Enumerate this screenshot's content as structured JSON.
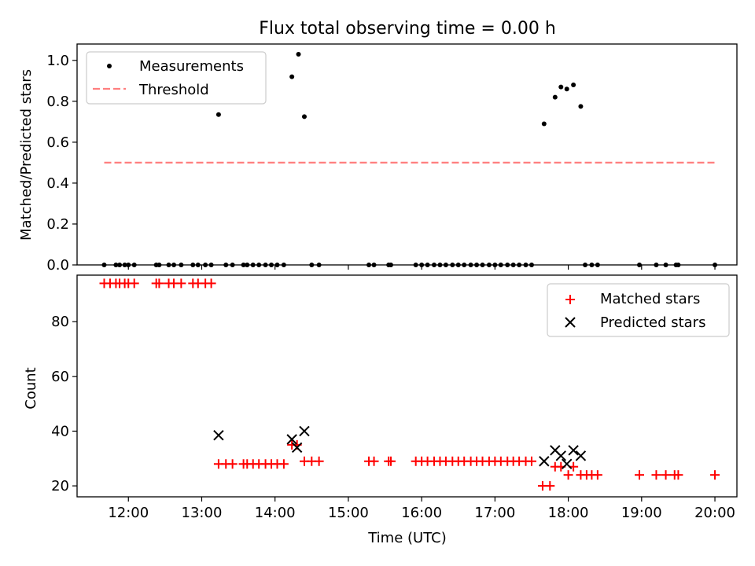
{
  "chart_data": {
    "type": "scatter",
    "title": "Flux total observing time = 0.00 h",
    "x_tick_labels": [
      "12:00",
      "13:00",
      "14:00",
      "15:00",
      "16:00",
      "17:00",
      "18:00",
      "19:00",
      "20:00"
    ],
    "x_ticks_hours": [
      12,
      13,
      14,
      15,
      16,
      17,
      18,
      19,
      20
    ],
    "xlabel": "Time (UTC)",
    "xlim_hours": [
      11.3,
      20.3
    ],
    "panels": [
      {
        "ylabel": "Matched/Predicted stars",
        "ylim": [
          0,
          1.08
        ],
        "y_ticks": [
          0.0,
          0.2,
          0.4,
          0.6,
          0.8,
          1.0
        ],
        "y_tick_labels": [
          "0.0",
          "0.2",
          "0.4",
          "0.6",
          "0.8",
          "1.0"
        ],
        "legend": {
          "placement": "upper-left",
          "entries": [
            "Measurements",
            "Threshold"
          ]
        },
        "series": [
          {
            "name": "Measurements",
            "marker": "dot",
            "color": "#000000",
            "points": [
              [
                11.67,
                0
              ],
              [
                11.83,
                0
              ],
              [
                11.88,
                0
              ],
              [
                11.95,
                0
              ],
              [
                12.0,
                0
              ],
              [
                12.08,
                0
              ],
              [
                12.38,
                0
              ],
              [
                12.42,
                0
              ],
              [
                12.55,
                0
              ],
              [
                12.62,
                0
              ],
              [
                12.72,
                0
              ],
              [
                12.88,
                0
              ],
              [
                12.95,
                0
              ],
              [
                13.05,
                0
              ],
              [
                13.13,
                0
              ],
              [
                13.23,
                0.735
              ],
              [
                13.33,
                0
              ],
              [
                13.42,
                0
              ],
              [
                13.57,
                0
              ],
              [
                13.62,
                0
              ],
              [
                13.7,
                0
              ],
              [
                13.78,
                0
              ],
              [
                13.87,
                0
              ],
              [
                13.95,
                0
              ],
              [
                14.03,
                0
              ],
              [
                14.12,
                0
              ],
              [
                14.23,
                0.92
              ],
              [
                14.32,
                1.03
              ],
              [
                14.4,
                0.725
              ],
              [
                14.5,
                0
              ],
              [
                14.6,
                0
              ],
              [
                15.28,
                0
              ],
              [
                15.35,
                0
              ],
              [
                15.55,
                0
              ],
              [
                15.58,
                0
              ],
              [
                15.92,
                0
              ],
              [
                16.0,
                0
              ],
              [
                16.08,
                0
              ],
              [
                16.17,
                0
              ],
              [
                16.25,
                0
              ],
              [
                16.33,
                0
              ],
              [
                16.42,
                0
              ],
              [
                16.5,
                0
              ],
              [
                16.58,
                0
              ],
              [
                16.67,
                0
              ],
              [
                16.75,
                0
              ],
              [
                16.83,
                0
              ],
              [
                16.92,
                0
              ],
              [
                17.0,
                0
              ],
              [
                17.08,
                0
              ],
              [
                17.17,
                0
              ],
              [
                17.25,
                0
              ],
              [
                17.33,
                0
              ],
              [
                17.42,
                0
              ],
              [
                17.5,
                0
              ],
              [
                17.67,
                0.69
              ],
              [
                17.82,
                0.82
              ],
              [
                17.9,
                0.87
              ],
              [
                17.98,
                0.86
              ],
              [
                18.07,
                0.88
              ],
              [
                18.17,
                0.775
              ],
              [
                18.23,
                0
              ],
              [
                18.32,
                0
              ],
              [
                18.4,
                0
              ],
              [
                18.97,
                0
              ],
              [
                19.2,
                0
              ],
              [
                19.33,
                0
              ],
              [
                19.47,
                0
              ],
              [
                19.5,
                0
              ],
              [
                20.0,
                0
              ]
            ]
          },
          {
            "name": "Threshold",
            "marker": "dashed-line",
            "color": "#ff7f7f",
            "points": [
              [
                11.67,
                0.5
              ],
              [
                20.0,
                0.5
              ]
            ]
          }
        ]
      },
      {
        "ylabel": "Count",
        "ylim": [
          16,
          97
        ],
        "y_ticks": [
          20,
          40,
          60,
          80
        ],
        "y_tick_labels": [
          "20",
          "40",
          "60",
          "80"
        ],
        "legend": {
          "placement": "upper-right",
          "entries": [
            "Matched stars",
            "Predicted stars"
          ]
        },
        "series": [
          {
            "name": "Matched stars",
            "marker": "plus",
            "color": "#ff0000",
            "points": [
              [
                11.67,
                94
              ],
              [
                11.75,
                94
              ],
              [
                11.83,
                94
              ],
              [
                11.88,
                94
              ],
              [
                11.95,
                94
              ],
              [
                12.0,
                94
              ],
              [
                12.08,
                94
              ],
              [
                12.38,
                94
              ],
              [
                12.42,
                94
              ],
              [
                12.55,
                94
              ],
              [
                12.62,
                94
              ],
              [
                12.72,
                94
              ],
              [
                12.88,
                94
              ],
              [
                12.95,
                94
              ],
              [
                13.05,
                94
              ],
              [
                13.13,
                94
              ],
              [
                13.23,
                28
              ],
              [
                13.33,
                28
              ],
              [
                13.42,
                28
              ],
              [
                13.57,
                28
              ],
              [
                13.62,
                28
              ],
              [
                13.7,
                28
              ],
              [
                13.78,
                28
              ],
              [
                13.87,
                28
              ],
              [
                13.95,
                28
              ],
              [
                14.03,
                28
              ],
              [
                14.12,
                28
              ],
              [
                14.23,
                35
              ],
              [
                14.3,
                35
              ],
              [
                14.4,
                29
              ],
              [
                14.5,
                29
              ],
              [
                14.6,
                29
              ],
              [
                15.28,
                29
              ],
              [
                15.35,
                29
              ],
              [
                15.55,
                29
              ],
              [
                15.58,
                29
              ],
              [
                15.92,
                29
              ],
              [
                16.0,
                29
              ],
              [
                16.08,
                29
              ],
              [
                16.17,
                29
              ],
              [
                16.25,
                29
              ],
              [
                16.33,
                29
              ],
              [
                16.42,
                29
              ],
              [
                16.5,
                29
              ],
              [
                16.58,
                29
              ],
              [
                16.67,
                29
              ],
              [
                16.75,
                29
              ],
              [
                16.83,
                29
              ],
              [
                16.92,
                29
              ],
              [
                17.0,
                29
              ],
              [
                17.08,
                29
              ],
              [
                17.17,
                29
              ],
              [
                17.25,
                29
              ],
              [
                17.33,
                29
              ],
              [
                17.42,
                29
              ],
              [
                17.5,
                29
              ],
              [
                17.65,
                20
              ],
              [
                17.75,
                20
              ],
              [
                17.82,
                27
              ],
              [
                17.9,
                27
              ],
              [
                18.0,
                24
              ],
              [
                18.07,
                27
              ],
              [
                18.17,
                24
              ],
              [
                18.25,
                24
              ],
              [
                18.32,
                24
              ],
              [
                18.4,
                24
              ],
              [
                18.97,
                24
              ],
              [
                19.2,
                24
              ],
              [
                19.33,
                24
              ],
              [
                19.45,
                24
              ],
              [
                19.5,
                24
              ],
              [
                20.0,
                24
              ]
            ]
          },
          {
            "name": "Predicted stars",
            "marker": "x",
            "color": "#000000",
            "points": [
              [
                13.23,
                38.5
              ],
              [
                14.23,
                37
              ],
              [
                14.3,
                34
              ],
              [
                14.4,
                40
              ],
              [
                17.67,
                29
              ],
              [
                17.82,
                33
              ],
              [
                17.9,
                31
              ],
              [
                17.98,
                28
              ],
              [
                18.07,
                33
              ],
              [
                18.17,
                31
              ]
            ]
          }
        ]
      }
    ]
  }
}
